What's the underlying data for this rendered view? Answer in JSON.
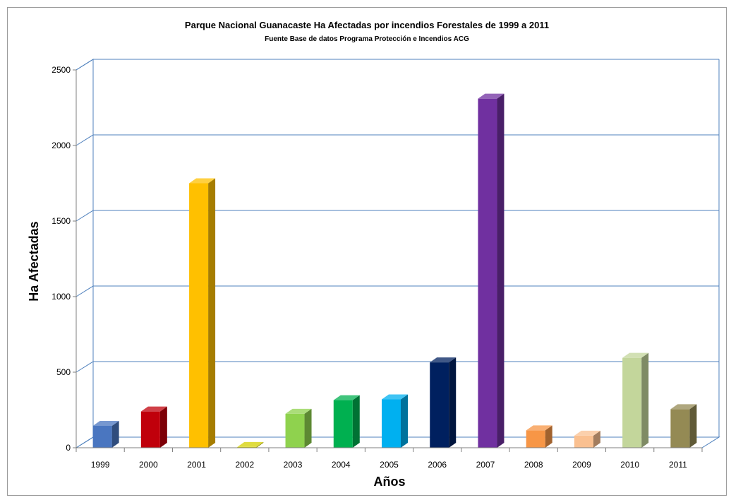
{
  "chart_data": {
    "type": "bar",
    "title": "Parque Nacional Guanacaste Ha Afectadas por incendios Forestales de 1999  a 2011",
    "subtitle": "Fuente Base de datos Programa Protección e Incendios ACG",
    "xlabel": "Años",
    "ylabel": "Ha Afectadas",
    "ylim": [
      0,
      2500
    ],
    "yticks": [
      0,
      500,
      1000,
      1500,
      2000,
      2500
    ],
    "grid": true,
    "three_d": true,
    "categories": [
      "1999",
      "2000",
      "2001",
      "2002",
      "2003",
      "2004",
      "2005",
      "2006",
      "2007",
      "2008",
      "2009",
      "2010",
      "2011"
    ],
    "values": [
      145,
      240,
      1750,
      5,
      225,
      315,
      320,
      565,
      2310,
      115,
      80,
      595,
      255
    ],
    "bar_colors": [
      "#4a76c0",
      "#c0000b",
      "#ffc000",
      "#d4d000",
      "#8fd24e",
      "#00b050",
      "#00b0f0",
      "#00205f",
      "#7030a0",
      "#f79646",
      "#fac090",
      "#c3d69b",
      "#948a54"
    ]
  }
}
